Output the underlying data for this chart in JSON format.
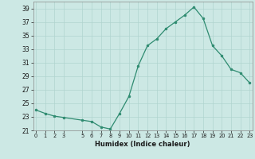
{
  "x": [
    0,
    1,
    2,
    3,
    5,
    6,
    7,
    8,
    9,
    10,
    11,
    12,
    13,
    14,
    15,
    16,
    17,
    18,
    19,
    20,
    21,
    22,
    23
  ],
  "y": [
    24.0,
    23.5,
    23.1,
    22.9,
    22.5,
    22.3,
    21.5,
    21.2,
    23.5,
    26.0,
    30.5,
    33.5,
    34.5,
    36.0,
    37.0,
    38.0,
    39.2,
    37.5,
    33.5,
    32.0,
    30.0,
    29.5,
    28.0
  ],
  "xlabel": "Humidex (Indice chaleur)",
  "ylabel": "",
  "line_color": "#2e8b70",
  "bg_color": "#cce8e4",
  "grid_color": "#b0d4cf",
  "ylim": [
    21,
    40
  ],
  "yticks": [
    21,
    23,
    25,
    27,
    29,
    31,
    33,
    35,
    37,
    39
  ],
  "xticks": [
    0,
    1,
    2,
    3,
    5,
    6,
    7,
    8,
    9,
    10,
    11,
    12,
    13,
    14,
    15,
    16,
    17,
    18,
    19,
    20,
    21,
    22,
    23
  ],
  "xlim": [
    -0.3,
    23.3
  ]
}
